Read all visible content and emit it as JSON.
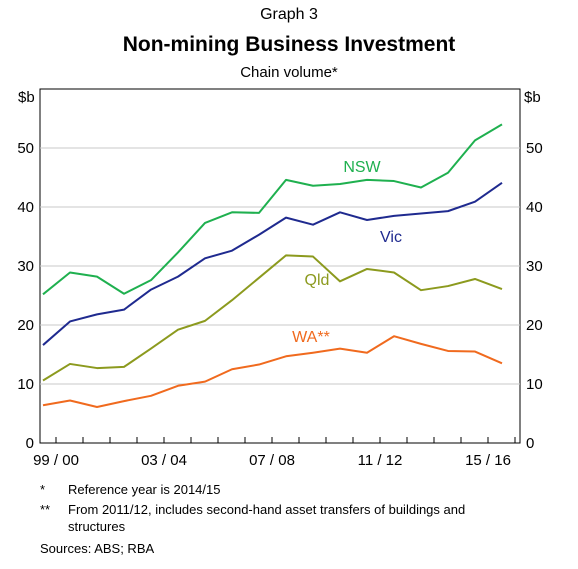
{
  "header": {
    "graph_number": "Graph 3",
    "title": "Non-mining Business Investment",
    "subtitle": "Chain volume*"
  },
  "chart_data": {
    "type": "line",
    "x": [
      "1999/00",
      "2000/01",
      "2001/02",
      "2002/03",
      "2003/04",
      "2004/05",
      "2005/06",
      "2006/07",
      "2007/08",
      "2008/09",
      "2009/10",
      "2010/11",
      "2011/12",
      "2012/13",
      "2013/14",
      "2014/15",
      "2015/16",
      "2016/17"
    ],
    "xtick_labels": [
      "99 / 00",
      "03 / 04",
      "07 / 08",
      "11 / 12",
      "15 / 16"
    ],
    "y_unit_left": "$b",
    "y_unit_right": "$b",
    "ylim": [
      0,
      60
    ],
    "yticks": [
      0,
      10,
      20,
      30,
      40,
      50
    ],
    "grid": true,
    "series": [
      {
        "name": "NSW",
        "color": "#1fb04f",
        "values": [
          25.2,
          28.9,
          28.2,
          25.3,
          27.6,
          32.3,
          37.3,
          39.1,
          39.0,
          44.6,
          43.6,
          43.9,
          44.6,
          44.4,
          43.3,
          45.8,
          51.3,
          54.0
        ]
      },
      {
        "name": "Vic",
        "color": "#1f2a8f",
        "values": [
          16.6,
          20.6,
          21.8,
          22.6,
          26.0,
          28.2,
          31.3,
          32.6,
          35.3,
          38.2,
          37.0,
          39.1,
          37.8,
          38.5,
          38.9,
          39.3,
          40.9,
          44.1
        ]
      },
      {
        "name": "Qld",
        "color": "#8c9a1e",
        "values": [
          10.6,
          13.4,
          12.7,
          12.9,
          16.0,
          19.2,
          20.7,
          24.2,
          28.0,
          31.8,
          31.6,
          27.4,
          29.5,
          28.9,
          25.9,
          26.6,
          27.8,
          26.1
        ]
      },
      {
        "name": "WA**",
        "color": "#f06a1e",
        "values": [
          6.4,
          7.2,
          6.1,
          7.1,
          8.0,
          9.7,
          10.4,
          12.5,
          13.3,
          14.7,
          15.3,
          16.0,
          15.3,
          18.1,
          16.8,
          15.6,
          15.5,
          13.5
        ]
      }
    ]
  },
  "notes": [
    {
      "mark": "*",
      "text": "Reference year is 2014/15"
    },
    {
      "mark": "**",
      "text": "From 2011/12, includes second-hand asset transfers of buildings and structures"
    }
  ],
  "sources": "Sources:   ABS; RBA"
}
